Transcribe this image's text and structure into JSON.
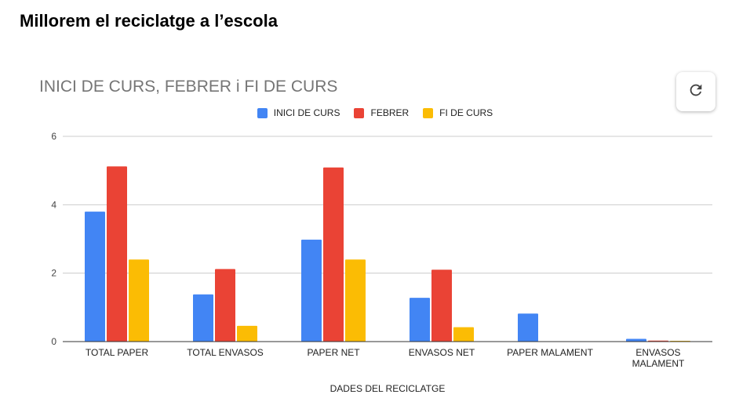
{
  "page": {
    "title": "Millorem el reciclatge a l’escola"
  },
  "refresh": {
    "icon": "refresh-icon"
  },
  "chart_data": {
    "type": "bar",
    "title": "INICI DE CURS, FEBRER i FI DE CURS",
    "xlabel": "DADES DEL RECICLATGE",
    "ylabel": "",
    "ylim": [
      0,
      6
    ],
    "yticks": [
      0,
      2,
      4,
      6
    ],
    "grid": true,
    "legend": "top-center",
    "categories": [
      [
        "TOTAL PAPER"
      ],
      [
        "TOTAL ENVASOS"
      ],
      [
        "PAPER NET"
      ],
      [
        "ENVASOS NET"
      ],
      [
        "PAPER MALAMENT"
      ],
      [
        "ENVASOS",
        "MALAMENT"
      ]
    ],
    "series": [
      {
        "name": "INICI DE CURS",
        "color": "#4285F4",
        "values": [
          3.8,
          1.38,
          2.98,
          1.28,
          0.82,
          0.08
        ]
      },
      {
        "name": "FEBRER",
        "color": "#EA4335",
        "values": [
          5.12,
          2.12,
          5.09,
          2.1,
          0.0,
          0.03
        ]
      },
      {
        "name": "FI DE CURS",
        "color": "#FBBC04",
        "values": [
          2.4,
          0.46,
          2.4,
          0.42,
          0.0,
          0.02
        ]
      }
    ]
  }
}
